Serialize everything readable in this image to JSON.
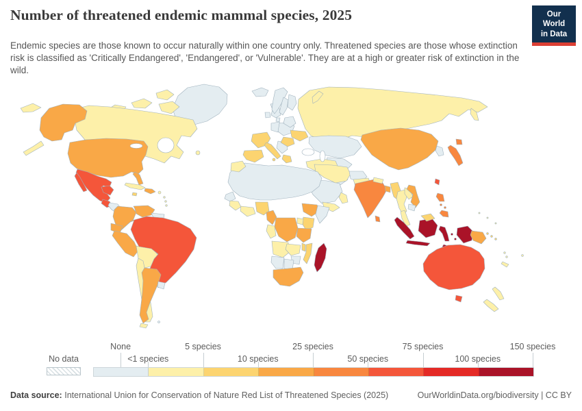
{
  "header": {
    "title": "Number of threatened endemic mammal species, 2025",
    "subtitle": "Endemic species are those known to occur naturally within one country only. Threatened species are those whose extinction risk is classified as 'Critically Endangered', 'Endangered', or 'Vulnerable'. They are at a high or greater risk of extinction in the wild.",
    "logo_line1": "Our World",
    "logo_line2": "in Data",
    "logo_bg_color": "#12304e",
    "logo_accent_color": "#dc3f34"
  },
  "legend": {
    "no_data_label": "No data",
    "segments": [
      {
        "range": "None",
        "color": "#e4edf1"
      },
      {
        "range": "<1–5",
        "color": "#fdf0a9"
      },
      {
        "range": "5–10",
        "color": "#fcd470"
      },
      {
        "range": "10–25",
        "color": "#f9a847"
      },
      {
        "range": "25–50",
        "color": "#f8873f"
      },
      {
        "range": "50–75",
        "color": "#f4563a"
      },
      {
        "range": "75–100",
        "color": "#e42a26"
      },
      {
        "range": "100–150",
        "color": "#aa1328"
      }
    ],
    "ticks": [
      {
        "label": "None",
        "pos": 0.5,
        "row": "top"
      },
      {
        "label": "<1 species",
        "pos": 1,
        "row": "bottom"
      },
      {
        "label": "5 species",
        "pos": 2,
        "row": "top"
      },
      {
        "label": "10 species",
        "pos": 3,
        "row": "bottom"
      },
      {
        "label": "25 species",
        "pos": 4,
        "row": "top"
      },
      {
        "label": "50 species",
        "pos": 5,
        "row": "bottom"
      },
      {
        "label": "75 species",
        "pos": 6,
        "row": "top"
      },
      {
        "label": "100 species",
        "pos": 7,
        "row": "bottom"
      },
      {
        "label": "150 species",
        "pos": 8,
        "row": "top"
      }
    ]
  },
  "map": {
    "ocean_color": "#ffffff",
    "border_color": "#9fb1bd",
    "regions": {
      "greenland": 0,
      "iceland": 0,
      "uk": 0,
      "ireland": 0,
      "norway": 0,
      "sweden": 0,
      "finland": 0,
      "denmark": 0,
      "germany": 0,
      "central-europe": 0,
      "balkans": 0,
      "belarus-baltics": 0,
      "kazakhstan": 0,
      "central-asia": 0,
      "mongolia": 0,
      "korea": 0,
      "syria-iraq": 0,
      "saudi-arabia": 0,
      "afghanistan": 0,
      "north-africa": 0,
      "west-africa-coast": 0,
      "somalia": 0,
      "namibia": 0,
      "botswana": 0,
      "zimbabwe": 0,
      "honduras-nicaragua": 0,
      "guyanas": 0,
      "uruguay": 0,
      "cambodia": 0,
      "falklands": 0,
      "canada": 1,
      "arctic-islands": 1,
      "russia": 1,
      "novaya-zemlya": 1,
      "svalbard": 1,
      "kamchatka": 1,
      "chukotka": 1,
      "aleutians": 1,
      "iran": 1,
      "pakistan": 1,
      "yemen": 1,
      "oman": 1,
      "nepal": 1,
      "turkey": 1,
      "thailand": 1,
      "laos": 1,
      "malay-peninsula": 1,
      "morocco": 1,
      "guinea": 1,
      "ivory-ghana": 1,
      "uganda": 1,
      "gabon-congo": 1,
      "angola": 1,
      "zambia": 1,
      "bolivia": 1,
      "paraguay": 1,
      "chile": 1,
      "costa-rica": 1,
      "cuba": 1,
      "puerto-rico": 1,
      "lesser-antilles": 1,
      "nz": 1,
      "vanuatu": 1,
      "new-caledonia": 1,
      "fiji": 1,
      "micronesia": 1,
      "france": 2,
      "iberia": 2,
      "italy": 2,
      "greece": 2,
      "romania": 2,
      "ukraine": 2,
      "nigeria": 2,
      "kenya": 2,
      "malawi": 2,
      "mozambique": 2,
      "jamaica": 2,
      "myanmar": 2,
      "borneo-malaysia": 2,
      "solomons": 2,
      "usa": 3,
      "alaska": 3,
      "china": 3,
      "cameroon": 3,
      "ethiopia": 3,
      "tanzania": 3,
      "drc": 3,
      "south-africa": 3,
      "colombia": 3,
      "venezuela": 3,
      "ecuador": 3,
      "peru": 3,
      "argentina": 3,
      "panama": 3,
      "vietnam": 3,
      "bangladesh": 3,
      "png": 3,
      "hispaniola": 3,
      "india": 4,
      "japan": 4,
      "philippines": 4,
      "sri-lanka": 4,
      "mexico": 5,
      "guatemala": 5,
      "brazil": 5,
      "australia": 5,
      "tasmania": 5,
      "taiwan": 5,
      "indonesia": 7,
      "madagascar": 7
    }
  },
  "chart_data": {
    "type": "heatmap",
    "subtype": "choropleth-world-map",
    "title": "Number of threatened endemic mammal species, 2025",
    "unit": "species",
    "legend_bins": [
      "No data",
      "None",
      "<1–5",
      "5–10",
      "10–25",
      "25–50",
      "50–75",
      "75–100",
      "100–150"
    ],
    "values": {
      "Greenland": "None",
      "Iceland": "None",
      "United Kingdom": "None",
      "Ireland": "None",
      "Norway": "None",
      "Sweden": "None",
      "Finland": "None",
      "Germany": "None",
      "Poland": "None",
      "Kazakhstan": "None",
      "Mongolia": "None",
      "North Korea": "None",
      "South Korea": "None",
      "Saudi Arabia": "None",
      "Iraq": "None",
      "Syria": "None",
      "Afghanistan": "None",
      "Algeria": "None",
      "Libya": "None",
      "Egypt": "None",
      "Sudan": "None",
      "Chad": "None",
      "Niger": "None",
      "Mali": "None",
      "Mauritania": "None",
      "Senegal": "None",
      "Somalia": "None",
      "Namibia": "None",
      "Botswana": "None",
      "Zimbabwe": "None",
      "Honduras": "None",
      "Nicaragua": "None",
      "Guyana": "None",
      "Suriname": "None",
      "Uruguay": "None",
      "Cambodia": "None",
      "Canada": "<1–5",
      "Russia": "<1–5",
      "Turkey": "<1–5",
      "Iran": "<1–5",
      "Pakistan": "<1–5",
      "Nepal": "<1–5",
      "Yemen": "<1–5",
      "Oman": "<1–5",
      "Thailand": "<1–5",
      "Laos": "<1–5",
      "Morocco": "<1–5",
      "Guinea": "<1–5",
      "Cote d'Ivoire": "<1–5",
      "Ghana": "<1–5",
      "Uganda": "<1–5",
      "Gabon": "<1–5",
      "Republic of Congo": "<1–5",
      "Angola": "<1–5",
      "Zambia": "<1–5",
      "Bolivia": "<1–5",
      "Paraguay": "<1–5",
      "Chile": "<1–5",
      "Costa Rica": "<1–5",
      "Cuba": "<1–5",
      "New Zealand": "<1–5",
      "Vanuatu": "<1–5",
      "New Caledonia": "<1–5",
      "Fiji": "<1–5",
      "France": "5–10",
      "Spain": "5–10",
      "Portugal": "5–10",
      "Italy": "5–10",
      "Greece": "5–10",
      "Romania": "5–10",
      "Ukraine": "5–10",
      "Nigeria": "5–10",
      "Kenya": "5–10",
      "Malawi": "5–10",
      "Mozambique": "5–10",
      "Jamaica": "5–10",
      "Myanmar": "5–10",
      "Malaysia": "5–10",
      "Solomon Islands": "5–10",
      "United States": "10–25",
      "China": "10–25",
      "Cameroon": "10–25",
      "Ethiopia": "10–25",
      "Tanzania": "10–25",
      "Democratic Republic of Congo": "10–25",
      "South Africa": "10–25",
      "Colombia": "10–25",
      "Venezuela": "10–25",
      "Ecuador": "10–25",
      "Peru": "10–25",
      "Argentina": "10–25",
      "Panama": "10–25",
      "Vietnam": "10–25",
      "Bangladesh": "10–25",
      "Papua New Guinea": "10–25",
      "Dominican Republic": "10–25",
      "India": "25–50",
      "Japan": "25–50",
      "Philippines": "25–50",
      "Sri Lanka": "25–50",
      "Mexico": "50–75",
      "Guatemala": "50–75",
      "Brazil": "50–75",
      "Australia": "50–75",
      "Taiwan": "50–75",
      "Indonesia": "100–150",
      "Madagascar": "100–150"
    }
  },
  "footer": {
    "source_label": "Data source:",
    "source_text": "International Union for Conservation of Nature Red List of Threatened Species (2025)",
    "link_text": "OurWorldinData.org/biodiversity | CC BY"
  }
}
